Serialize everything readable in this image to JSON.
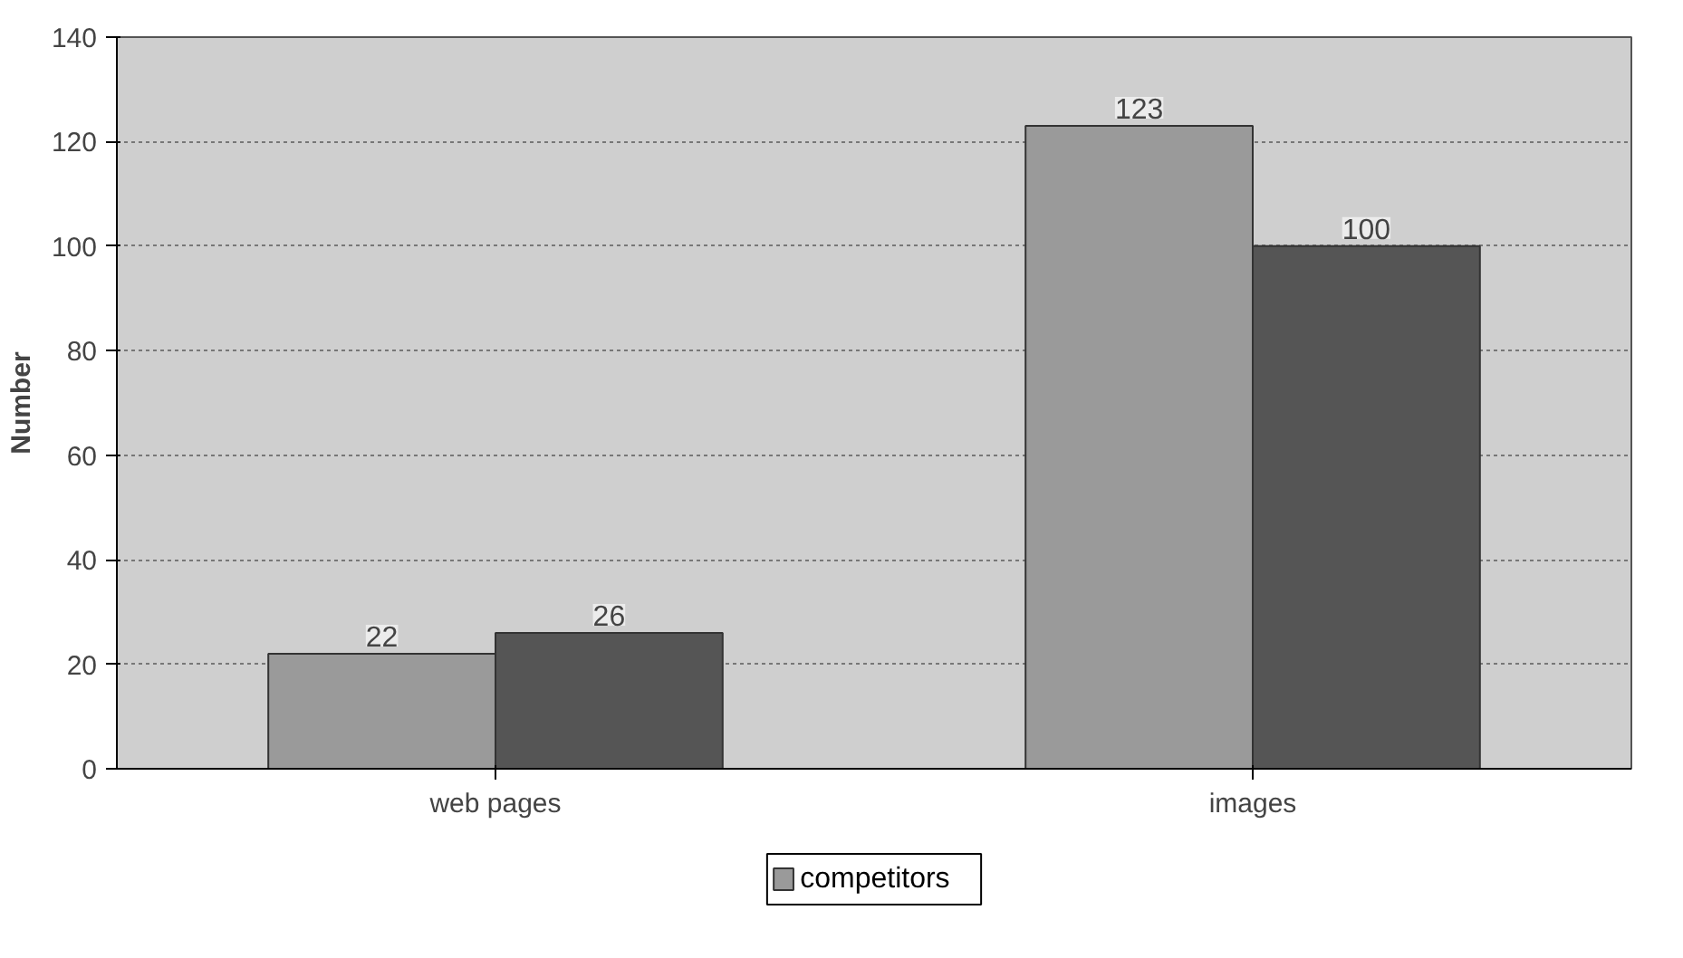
{
  "chart_data": {
    "type": "bar",
    "ylabel": "Number",
    "categories": [
      "web pages",
      "images"
    ],
    "series": [
      {
        "name": "competitors",
        "color": "#9a9a9a",
        "values": [
          22,
          123
        ]
      },
      {
        "color": "#555555",
        "values": [
          26,
          100
        ]
      }
    ],
    "ylim": [
      0,
      140
    ],
    "yticks": [
      0,
      20,
      40,
      60,
      80,
      100,
      120,
      140
    ],
    "grid": "y",
    "legend": "bottom",
    "data_labels": true
  }
}
